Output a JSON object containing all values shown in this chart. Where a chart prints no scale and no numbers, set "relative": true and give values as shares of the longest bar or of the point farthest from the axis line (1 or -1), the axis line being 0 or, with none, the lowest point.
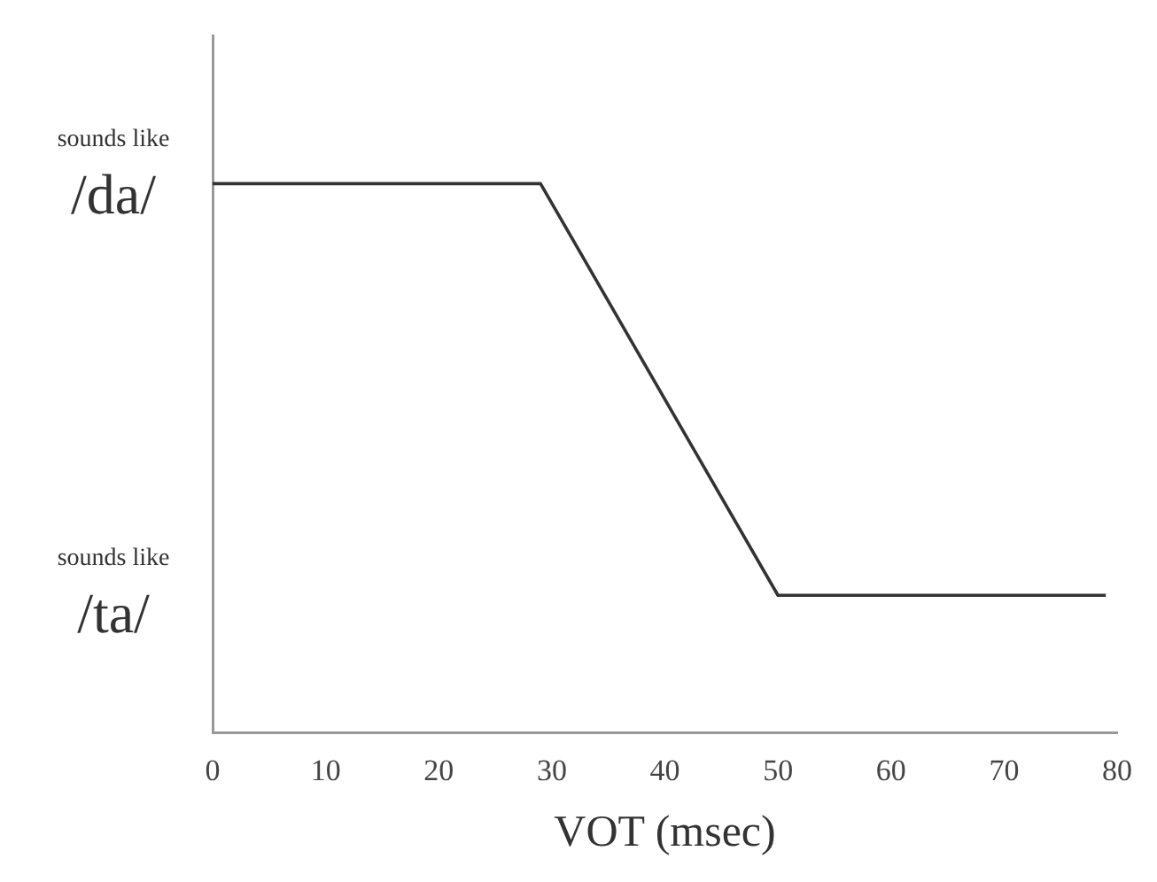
{
  "chart_data": {
    "type": "line",
    "xlabel": "VOT (msec)",
    "relative": true,
    "x": [
      0,
      29,
      50,
      79
    ],
    "series": [
      {
        "color": "#333333",
        "values": [
          1,
          1,
          0.25,
          0.25
        ]
      }
    ],
    "xlim": [
      0,
      80
    ],
    "xticks": [
      0,
      10,
      20,
      30,
      40,
      50,
      60,
      70,
      80
    ],
    "grid": false,
    "legend": false,
    "marker": "none",
    "line_style": "solid",
    "tick_labels": "x",
    "annotations": [
      "sounds like /da/",
      "sounds like /ta/"
    ]
  }
}
